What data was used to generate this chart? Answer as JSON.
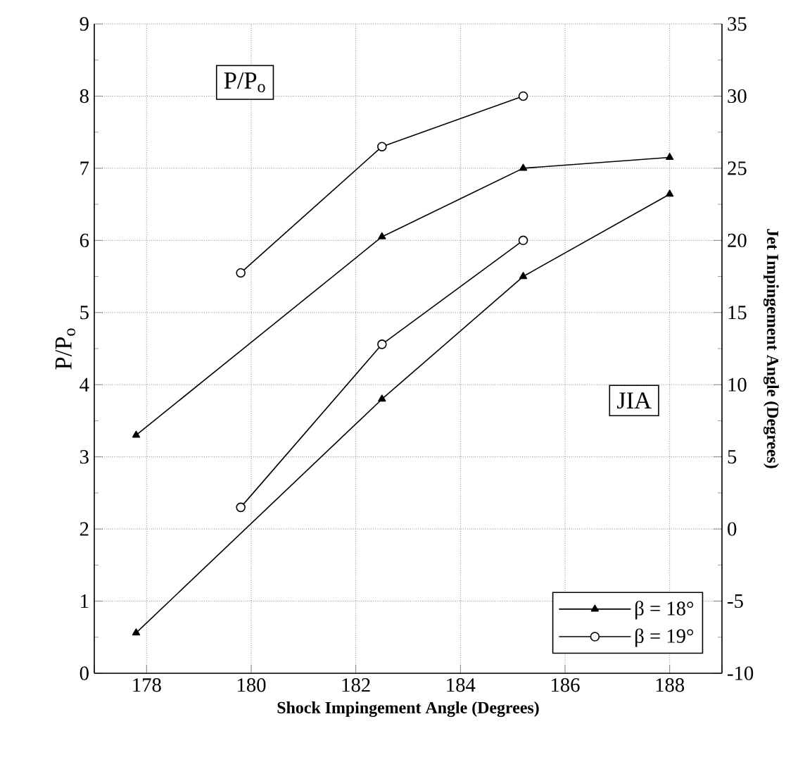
{
  "chart_data": {
    "type": "line",
    "xlabel": "Shock Impingement Angle (Degrees)",
    "ylabel": "P/P$_{o}$",
    "y2label": "Jet Impingement Angle (Degrees)",
    "xlim": [
      177,
      189
    ],
    "xticks": [
      {
        "value": 177,
        "label": null
      },
      178,
      180,
      182,
      184,
      186,
      188,
      {
        "value": 189,
        "label": null
      }
    ],
    "ylim": [
      0,
      9
    ],
    "yticks": [
      0,
      1,
      2,
      3,
      4,
      5,
      6,
      7,
      8,
      9
    ],
    "y2lim": [
      -10,
      35
    ],
    "y2ticks": [
      -10,
      -5,
      0,
      5,
      10,
      15,
      20,
      25,
      30,
      35
    ],
    "grid": true,
    "legend": "bottom right",
    "line_style": "solid",
    "annotations": [
      "P/P$_{o}$",
      "JIA"
    ],
    "series": [
      {
        "name": "β = 18°",
        "color": "#000000",
        "marker": "triangle",
        "x": [
          177.8,
          182.5,
          185.2,
          188
        ],
        "values": [
          3.3,
          6.05,
          7.0,
          7.15
        ]
      },
      {
        "name": "β = 19°",
        "color": "#000000",
        "marker": "circle",
        "x": [
          179.8,
          182.5,
          185.2
        ],
        "values": [
          5.55,
          7.3,
          8.0
        ]
      },
      {
        "axis": "y2",
        "color": "#000000",
        "marker": "triangle",
        "x": [
          177.8,
          182.5,
          185.2,
          188
        ],
        "values": [
          -7.2,
          9.0,
          17.5,
          23.2
        ]
      },
      {
        "axis": "y2",
        "color": "#000000",
        "marker": "circle",
        "x": [
          179.8,
          182.5,
          185.2
        ],
        "values": [
          1.5,
          12.8,
          20.0
        ]
      }
    ]
  }
}
